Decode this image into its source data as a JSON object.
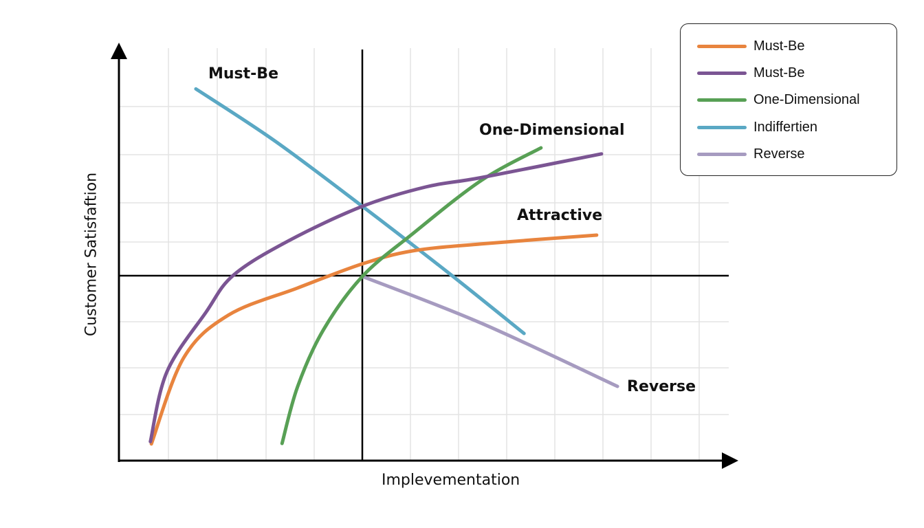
{
  "chart_data": {
    "type": "line",
    "title": "",
    "xlabel": "Implevementation",
    "ylabel": "Customer Satisfaftion",
    "xlim": [
      0,
      12.8
    ],
    "ylim": [
      0,
      9
    ],
    "grid": true,
    "legend_position": "top-right",
    "series": [
      {
        "name": "Must-Be",
        "color": "#E8843E",
        "points": [
          [
            0.67,
            0.36
          ],
          [
            1.34,
            2.22
          ],
          [
            2.27,
            3.14
          ],
          [
            3.69,
            3.72
          ],
          [
            5.03,
            4.24
          ],
          [
            6.07,
            4.52
          ],
          [
            7.49,
            4.67
          ],
          [
            9.87,
            4.86
          ]
        ]
      },
      {
        "name": "Must-Be",
        "color": "#7B5593",
        "points": [
          [
            0.65,
            0.41
          ],
          [
            0.99,
            1.91
          ],
          [
            1.8,
            3.2
          ],
          [
            2.37,
            4.0
          ],
          [
            3.51,
            4.74
          ],
          [
            5.03,
            5.48
          ],
          [
            6.35,
            5.9
          ],
          [
            7.49,
            6.1
          ],
          [
            9.97,
            6.61
          ]
        ]
      },
      {
        "name": "One-Dimensional",
        "color": "#58A055",
        "points": [
          [
            3.37,
            0.37
          ],
          [
            3.69,
            1.59
          ],
          [
            4.22,
            2.81
          ],
          [
            5.03,
            3.97
          ],
          [
            6.07,
            4.89
          ],
          [
            7.49,
            6.04
          ],
          [
            8.72,
            6.74
          ]
        ]
      },
      {
        "name": "Indiffertien",
        "color": "#5AA8C4",
        "points": [
          [
            1.59,
            8.01
          ],
          [
            3.22,
            6.89
          ],
          [
            5.03,
            5.48
          ],
          [
            6.78,
            4.07
          ],
          [
            8.37,
            2.74
          ]
        ]
      },
      {
        "name": "Reverse",
        "color": "#A69BC0",
        "points": [
          [
            5.03,
            3.97
          ],
          [
            7.49,
            2.96
          ],
          [
            10.3,
            1.6
          ]
        ]
      }
    ],
    "annotations": [
      {
        "text": "Must-Be"
      },
      {
        "text": "One-Dimensional"
      },
      {
        "text": "Attractive"
      },
      {
        "text": "Reverse"
      }
    ]
  }
}
